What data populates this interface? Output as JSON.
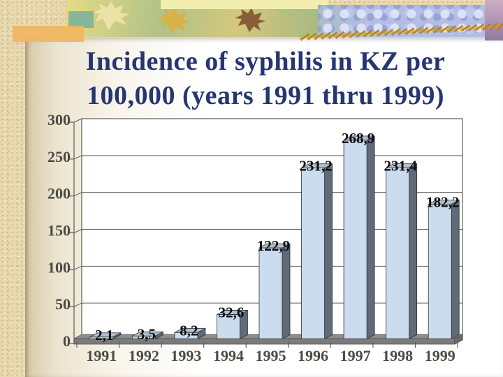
{
  "slide": {
    "title_line1": "Incidence of syphilis in KZ per",
    "title_line2": "100,000 (years 1991 thru 1999)",
    "title_color": "#263672"
  },
  "chart_data": {
    "type": "bar",
    "title": "Incidence of syphilis in KZ per 100,000 (years 1991 thru 1999)",
    "xlabel": "",
    "ylabel": "",
    "categories": [
      "1991",
      "1992",
      "1993",
      "1994",
      "1995",
      "1996",
      "1997",
      "1998",
      "1999"
    ],
    "values": [
      2.1,
      3.5,
      8.2,
      32.6,
      122.9,
      231.2,
      268.9,
      231.4,
      182.2
    ],
    "value_labels": [
      "2,1",
      "3,5",
      "8,2",
      "32,6",
      "122,9",
      "231,2",
      "268,9",
      "231,4",
      "182,2"
    ],
    "y_ticks": [
      300,
      250,
      200,
      150,
      100,
      50,
      0
    ],
    "ylim": [
      0,
      300
    ],
    "grid": true,
    "legend": "none",
    "style": "3d-column",
    "bar_front_color": "#cadcee",
    "bar_side_color": "#5f6b79",
    "bar_top_color": "#aebfd2",
    "floor_top_color": "#8d8d8d",
    "floor_front_color": "#7b7b7b",
    "floor_side_color": "#6a6a6a",
    "wall_color": "#ffffff",
    "gridline_color": "#636363",
    "axis_color": "#5d5d5d",
    "label_color": "#0c0c0c",
    "axis_label_color": "#4b4b45"
  }
}
